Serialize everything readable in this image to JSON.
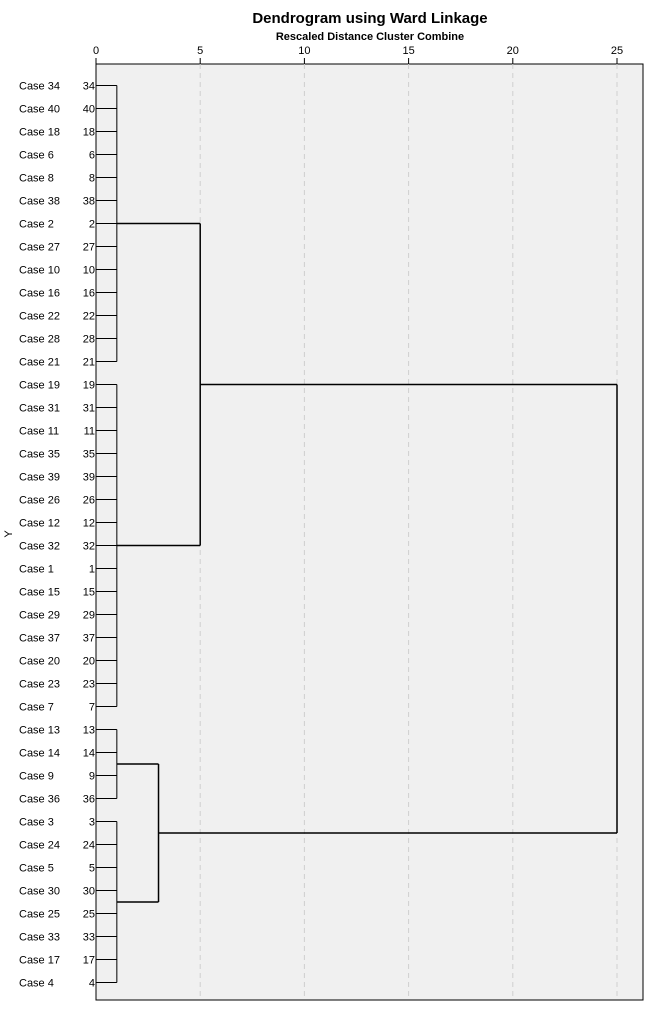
{
  "chart_data": {
    "type": "dendrogram",
    "title": "Dendrogram using Ward Linkage",
    "subtitle": "Rescaled Distance Cluster Combine",
    "xlabel": "Rescaled Distance Cluster Combine",
    "ylabel": "Y",
    "xlim": [
      0,
      25
    ],
    "xticks": [
      0,
      5,
      10,
      15,
      20,
      25
    ],
    "grid": true,
    "leaves": [
      {
        "label": "Case 34",
        "num": "34"
      },
      {
        "label": "Case 40",
        "num": "40"
      },
      {
        "label": "Case 18",
        "num": "18"
      },
      {
        "label": "Case 6",
        "num": "6"
      },
      {
        "label": "Case 8",
        "num": "8"
      },
      {
        "label": "Case 38",
        "num": "38"
      },
      {
        "label": "Case 2",
        "num": "2"
      },
      {
        "label": "Case 27",
        "num": "27"
      },
      {
        "label": "Case 10",
        "num": "10"
      },
      {
        "label": "Case 16",
        "num": "16"
      },
      {
        "label": "Case 22",
        "num": "22"
      },
      {
        "label": "Case 28",
        "num": "28"
      },
      {
        "label": "Case 21",
        "num": "21"
      },
      {
        "label": "Case 19",
        "num": "19"
      },
      {
        "label": "Case 31",
        "num": "31"
      },
      {
        "label": "Case 11",
        "num": "11"
      },
      {
        "label": "Case 35",
        "num": "35"
      },
      {
        "label": "Case 39",
        "num": "39"
      },
      {
        "label": "Case 26",
        "num": "26"
      },
      {
        "label": "Case 12",
        "num": "12"
      },
      {
        "label": "Case 32",
        "num": "32"
      },
      {
        "label": "Case 1",
        "num": "1"
      },
      {
        "label": "Case 15",
        "num": "15"
      },
      {
        "label": "Case 29",
        "num": "29"
      },
      {
        "label": "Case 37",
        "num": "37"
      },
      {
        "label": "Case 20",
        "num": "20"
      },
      {
        "label": "Case 23",
        "num": "23"
      },
      {
        "label": "Case 7",
        "num": "7"
      },
      {
        "label": "Case 13",
        "num": "13"
      },
      {
        "label": "Case 14",
        "num": "14"
      },
      {
        "label": "Case 9",
        "num": "9"
      },
      {
        "label": "Case 36",
        "num": "36"
      },
      {
        "label": "Case 3",
        "num": "3"
      },
      {
        "label": "Case 24",
        "num": "24"
      },
      {
        "label": "Case 5",
        "num": "5"
      },
      {
        "label": "Case 30",
        "num": "30"
      },
      {
        "label": "Case 25",
        "num": "25"
      },
      {
        "label": "Case 33",
        "num": "33"
      },
      {
        "label": "Case 17",
        "num": "17"
      },
      {
        "label": "Case 4",
        "num": "4"
      }
    ],
    "merges": [
      {
        "id": "A",
        "height": 1.0,
        "leaf_range": [
          0,
          12
        ]
      },
      {
        "id": "B",
        "height": 1.0,
        "leaf_range": [
          13,
          27
        ]
      },
      {
        "id": "C",
        "height": 1.0,
        "leaf_range": [
          28,
          31
        ]
      },
      {
        "id": "D",
        "height": 1.0,
        "leaf_range": [
          32,
          39
        ]
      },
      {
        "id": "AB",
        "height": 5.0,
        "children": [
          "A",
          "B"
        ]
      },
      {
        "id": "CD",
        "height": 3.0,
        "children": [
          "C",
          "D"
        ]
      },
      {
        "id": "ROOT",
        "height": 25.0,
        "children": [
          "AB",
          "CD"
        ]
      }
    ]
  },
  "colors": {
    "plot_background": "#f0f0f0",
    "grid": "#cfcfcf",
    "line": "#000000"
  }
}
